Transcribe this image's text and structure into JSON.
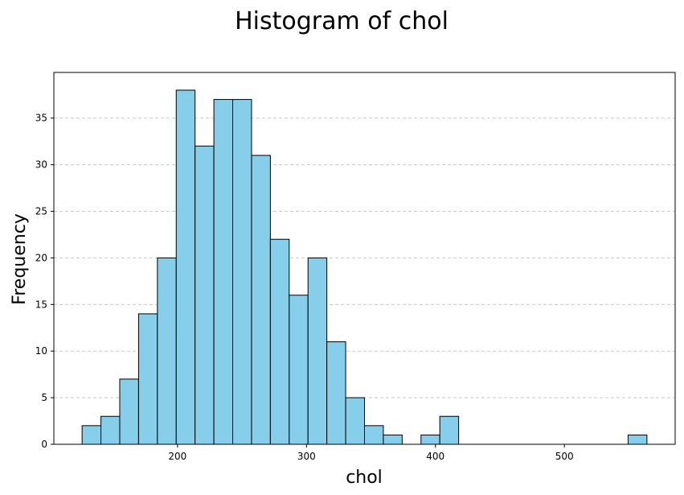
{
  "chart_data": {
    "type": "bar",
    "title": "Histogram of chol",
    "xlabel": "chol",
    "ylabel": "Frequency",
    "bin_edges": [
      126,
      140.6,
      155.2,
      169.8,
      184.4,
      199,
      213.6,
      228.2,
      242.8,
      257.4,
      272,
      286.6,
      301.2,
      315.8,
      330.4,
      345,
      359.6,
      374.2,
      388.8,
      403.4,
      418,
      432.6,
      447.2,
      461.8,
      476.4,
      491,
      505.6,
      520.2,
      534.8,
      549.4,
      564
    ],
    "values": [
      2,
      3,
      7,
      14,
      20,
      38,
      32,
      37,
      37,
      31,
      22,
      16,
      20,
      11,
      5,
      2,
      1,
      0,
      1,
      3,
      0,
      0,
      0,
      0,
      0,
      0,
      0,
      0,
      0,
      1
    ],
    "xlim": [
      104.1,
      585.9
    ],
    "ylim": [
      0,
      39.9
    ],
    "xticks": [
      "200",
      "300",
      "400",
      "500"
    ],
    "yticks": [
      "0",
      "5",
      "10",
      "15",
      "20",
      "25",
      "30",
      "35"
    ],
    "grid": "y-dashed",
    "colors": {
      "bar_fill": "#87ceeb",
      "bar_edge": "#000000",
      "grid": "#c8c8c8"
    }
  }
}
